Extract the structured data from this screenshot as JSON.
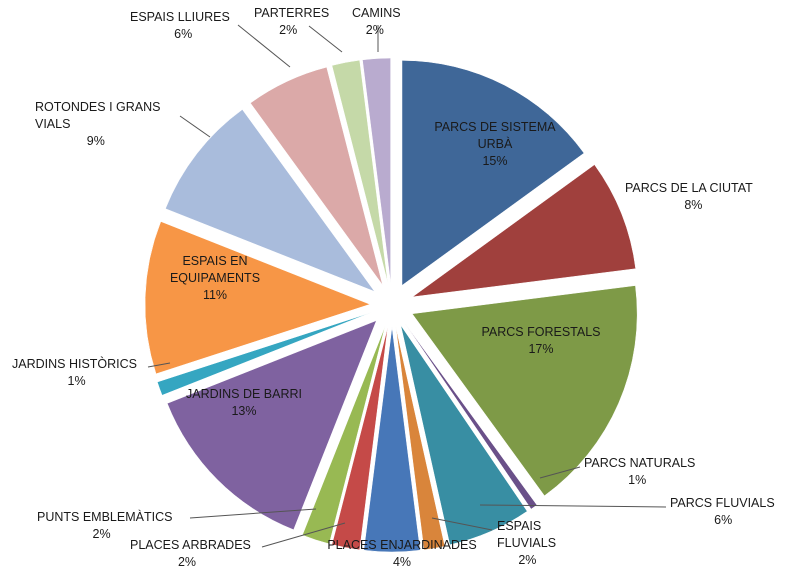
{
  "chart_data": {
    "type": "pie",
    "exploded": true,
    "legend": "none",
    "slices": [
      {
        "name": "PARCS DE SISTEMA URBÀ",
        "lines": [
          "PARCS DE SISTEMA",
          "URBÀ"
        ],
        "value": 15,
        "percent_label": "15%",
        "color": "#3f6798"
      },
      {
        "name": "PARCS DE LA CIUTAT",
        "lines": [
          "PARCS DE LA CIUTAT"
        ],
        "value": 8,
        "percent_label": "8%",
        "color": "#a0403d"
      },
      {
        "name": "PARCS FORESTALS",
        "lines": [
          "PARCS FORESTALS"
        ],
        "value": 17,
        "percent_label": "17%",
        "color": "#7e9a47"
      },
      {
        "name": "PARCS NATURALS",
        "lines": [
          "PARCS NATURALS"
        ],
        "value": 0.5,
        "percent_label": "1%",
        "color": "#6a5089"
      },
      {
        "name": "PARCS FLUVIALS",
        "lines": [
          "PARCS FLUVIALS"
        ],
        "value": 6,
        "percent_label": "6%",
        "color": "#388ea3"
      },
      {
        "name": "ESPAIS FLUVIALS",
        "lines": [
          "ESPAIS",
          "FLUVIALS"
        ],
        "value": 1.5,
        "percent_label": "2%",
        "color": "#d9853b"
      },
      {
        "name": "PLACES ENJARDINADES",
        "lines": [
          "PLACES ENJARDINADES"
        ],
        "value": 4,
        "percent_label": "4%",
        "color": "#4777b8"
      },
      {
        "name": "PLACES ARBRADES",
        "lines": [
          "PLACES ARBRADES"
        ],
        "value": 2,
        "percent_label": "2%",
        "color": "#c54a48"
      },
      {
        "name": "PUNTS EMBLEMÀTICS",
        "lines": [
          "PUNTS EMBLEMÀTICS"
        ],
        "value": 2,
        "percent_label": "2%",
        "color": "#98b953"
      },
      {
        "name": "JARDINS DE BARRI",
        "lines": [
          "JARDINS DE BARRI"
        ],
        "value": 13,
        "percent_label": "13%",
        "color": "#7f62a0"
      },
      {
        "name": "JARDINS HISTÒRICS",
        "lines": [
          "JARDINS HISTÒRICS"
        ],
        "value": 1,
        "percent_label": "1%",
        "color": "#35a6c1"
      },
      {
        "name": "ESPAIS EN EQUIPAMENTS",
        "lines": [
          "ESPAIS EN",
          "EQUIPAMENTS"
        ],
        "value": 11,
        "percent_label": "11%",
        "color": "#f79646"
      },
      {
        "name": "ROTONDES I GRANS VIALS",
        "lines": [
          "ROTONDES I GRANS",
          "VIALS"
        ],
        "value": 9,
        "percent_label": "9%",
        "color": "#a9bcdc"
      },
      {
        "name": "ESPAIS LLIURES",
        "lines": [
          "ESPAIS LLIURES"
        ],
        "value": 6,
        "percent_label": "6%",
        "color": "#dba9a8"
      },
      {
        "name": "PARTERRES",
        "lines": [
          "PARTERRES"
        ],
        "value": 2,
        "percent_label": "2%",
        "color": "#c5d9a8"
      },
      {
        "name": "CAMINS",
        "lines": [
          "CAMINS"
        ],
        "value": 2,
        "percent_label": "2%",
        "color": "#b9abcf"
      }
    ]
  }
}
